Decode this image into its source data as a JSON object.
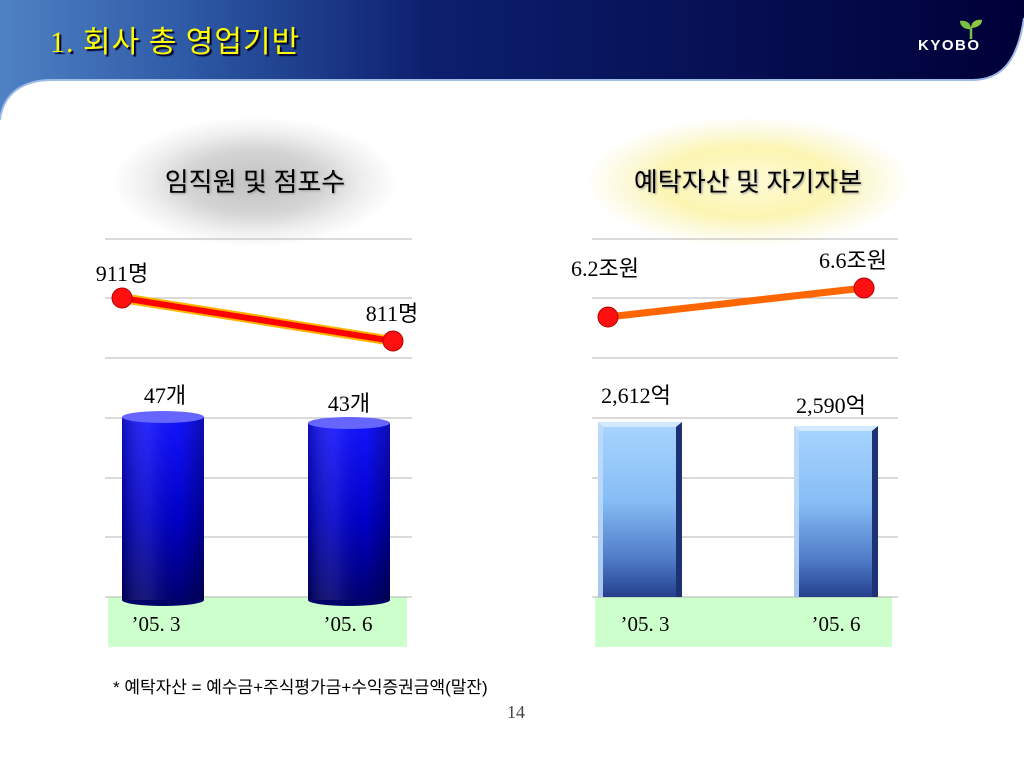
{
  "header": {
    "title": "1. 회사 총 영업기반",
    "logo_text": "KYOBO",
    "logo_icon": "sprout-icon"
  },
  "theme": {
    "title_color": "#ffff00",
    "header_color": "#000038",
    "category_band": "#ccffcc",
    "logo_leaf": "#7ac143"
  },
  "chart_data": [
    {
      "type": "bar",
      "title": "임직원 및 점포수",
      "categories": [
        "’05. 3",
        "’05. 6"
      ],
      "grid": true,
      "series": [
        {
          "type": "line",
          "values": [
            911,
            811
          ],
          "data_labels": [
            "911명",
            "811명"
          ],
          "color": "#ff0000",
          "marker_color": "#ff1010"
        },
        {
          "type": "bar",
          "values": [
            47,
            43
          ],
          "data_labels": [
            "47개",
            "43개"
          ],
          "color": "#0000ff"
        }
      ]
    },
    {
      "type": "bar",
      "title": "예탁자산 및 자기자본",
      "categories": [
        "’05. 3",
        "’05. 6"
      ],
      "grid": true,
      "series": [
        {
          "type": "line",
          "values": [
            6.2,
            6.6
          ],
          "data_labels": [
            "6.2조원",
            "6.6조원"
          ],
          "color": "#ff6600",
          "marker_color": "#ff1010"
        },
        {
          "type": "bar",
          "values": [
            2612,
            2590
          ],
          "data_labels": [
            "2,612억",
            "2,590억"
          ],
          "color": "#99ccff"
        }
      ]
    }
  ],
  "slide": {
    "footnote": "* 예탁자산 = 예수금+주식평가금+수익증권금액(말잔)",
    "page_number": "14"
  }
}
